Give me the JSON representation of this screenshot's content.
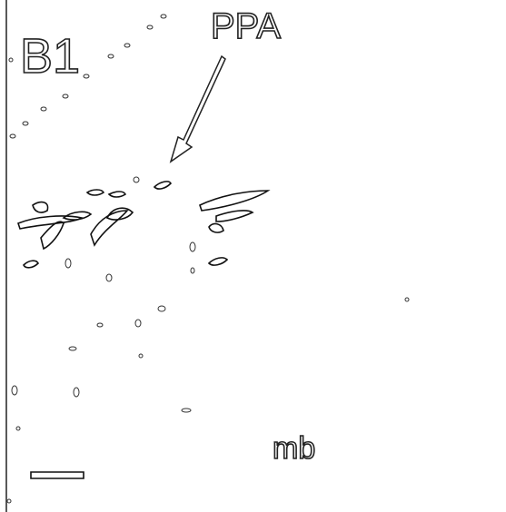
{
  "panel_label": "B1",
  "annotations": [
    {
      "label": "PPA"
    },
    {
      "label": "mb"
    }
  ]
}
